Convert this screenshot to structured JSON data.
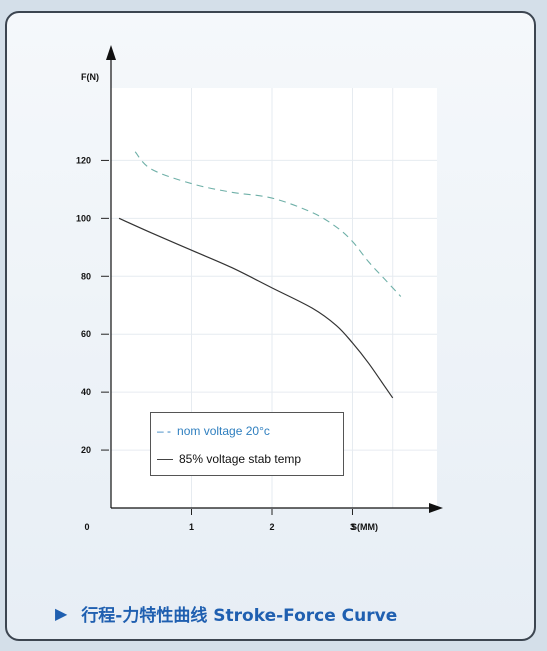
{
  "chart_data": {
    "type": "line",
    "title": "",
    "ylabel": "F(N)",
    "xlabel": "S(MM)",
    "origin_label": "0",
    "xlim": [
      0,
      4.05
    ],
    "ylim": [
      0,
      145
    ],
    "x_ticks": [
      1,
      2,
      3
    ],
    "y_ticks": [
      20,
      40,
      60,
      80,
      100,
      120
    ],
    "grid": true,
    "legend_position": "bottom-left",
    "series": [
      {
        "name": "nom voltage 20°c",
        "style": "dashed",
        "color": "#6fb0a8",
        "x": [
          0.3,
          0.5,
          1.0,
          1.5,
          2.0,
          2.5,
          2.8,
          3.0,
          3.2,
          3.4,
          3.6
        ],
        "y": [
          123,
          117,
          112,
          109,
          107,
          102,
          97,
          92,
          85,
          79,
          73
        ]
      },
      {
        "name": "85% voltage stab temp",
        "style": "solid",
        "color": "#333333",
        "x": [
          0.1,
          0.5,
          1.0,
          1.5,
          2.0,
          2.5,
          2.8,
          3.0,
          3.2,
          3.4,
          3.5
        ],
        "y": [
          100,
          95,
          89,
          83,
          76,
          69,
          63,
          57,
          50,
          42,
          38
        ]
      }
    ]
  },
  "legend": {
    "entry1_marker": "– -",
    "entry1": "nom  voltage 20°c",
    "entry2": "85%  voltage stab temp"
  },
  "caption": {
    "marker": "▶",
    "text": "行程-力特性曲线 Stroke-Force Curve"
  }
}
